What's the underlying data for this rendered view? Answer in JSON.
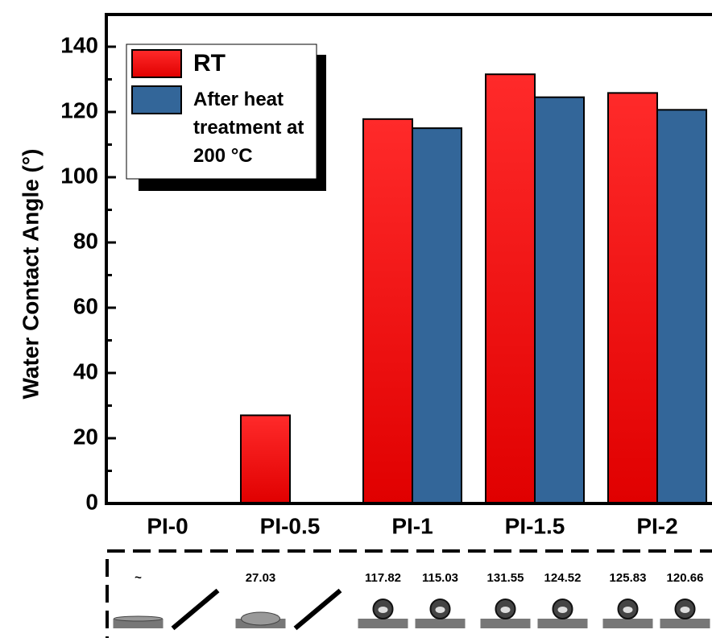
{
  "chart_data": {
    "type": "bar",
    "ylabel": "Water Contact Angle (°)",
    "categories": [
      "PI-0",
      "PI-0.5",
      "PI-1",
      "PI-1.5",
      "PI-2"
    ],
    "series": [
      {
        "name": "RT",
        "color": "#f01010",
        "values": [
          null,
          27.03,
          117.82,
          131.55,
          125.83
        ],
        "value_labels": [
          "~",
          "27.03",
          "117.82",
          "131.55",
          "125.83"
        ]
      },
      {
        "name": "After heat treatment at 200 °C",
        "color": "#336699",
        "values": [
          null,
          null,
          115.03,
          124.52,
          120.66
        ]
      }
    ],
    "ylim": [
      0,
      140
    ],
    "yticks": [
      0,
      20,
      40,
      60,
      80,
      100,
      120,
      140
    ]
  }
}
